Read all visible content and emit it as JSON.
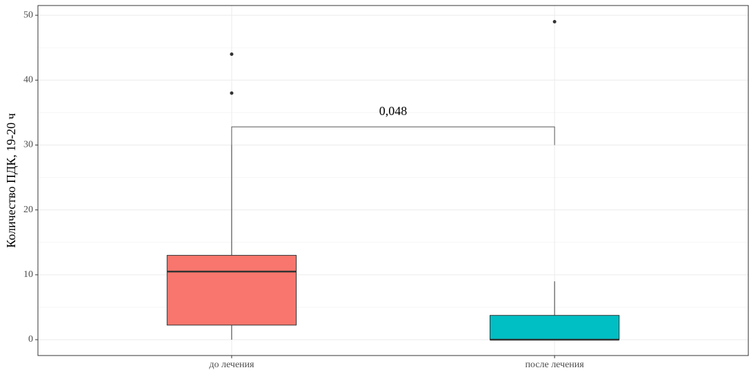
{
  "chart_data": {
    "type": "box",
    "ylabel": "Количество ПДК, 19-20 ч",
    "categories": [
      "до лечения",
      "после лечения"
    ],
    "series": [
      {
        "color": "#f8766d",
        "whisker_low": [
          0,
          0
        ],
        "q1": [
          2.25,
          0
        ],
        "median": [
          10.5,
          0
        ],
        "q3": [
          13,
          3.75
        ],
        "whisker_high": [
          30,
          9
        ]
      },
      {
        "color": "#00bfc4"
      }
    ],
    "boxes": [
      {
        "color": "#f8766d",
        "whisker_low": 0,
        "q1": 2.25,
        "median": 10.5,
        "q3": 13,
        "whisker_high": 30,
        "outliers": [
          38,
          44
        ]
      },
      {
        "color": "#00bfc4",
        "whisker_low": 0,
        "q1": 0,
        "median": 0,
        "q3": 3.75,
        "whisker_high": 9,
        "outliers": [
          49
        ]
      }
    ],
    "ylim": [
      -2.44,
      51.5
    ],
    "yticks": [
      0,
      10,
      20,
      30,
      40,
      50
    ],
    "minor_yticks": [
      5,
      15,
      25,
      35,
      45
    ],
    "grid": true,
    "bracket": {
      "label": "0,048",
      "y_low": 30,
      "y_high": 32.8
    }
  }
}
